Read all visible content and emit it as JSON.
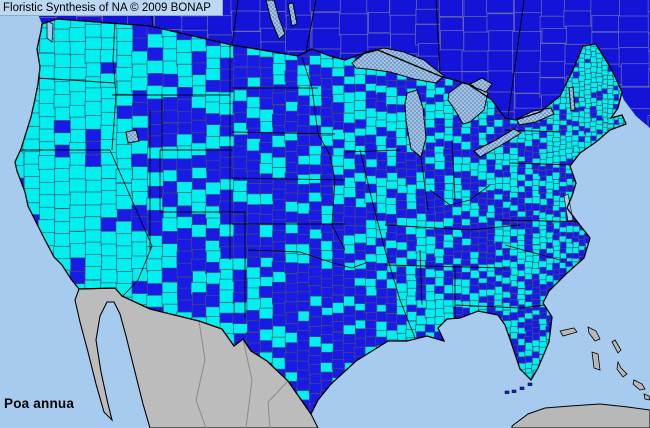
{
  "header": {
    "attribution": "Floristic Synthesis of NA © 2009 BONAP"
  },
  "map": {
    "species_label": "Poa annua",
    "colors": {
      "ocean": "#A7CBEE",
      "header_bg": "#BCD8F2",
      "canada_fill": "#1414D8",
      "county_absent": "#1A1AE6",
      "county_present": "#00EFEF",
      "mexico_fill": "#BCBCBC",
      "island_fill": "#B8B8B8",
      "lake_fill": "#9CC5E9",
      "lake_stipple": "#3A3A6E",
      "county_border": "#44506E",
      "canada_cell_border": "#7070A8",
      "mexico_border": "#8A8A8A",
      "outline": "#000000",
      "text": "#000000"
    }
  }
}
